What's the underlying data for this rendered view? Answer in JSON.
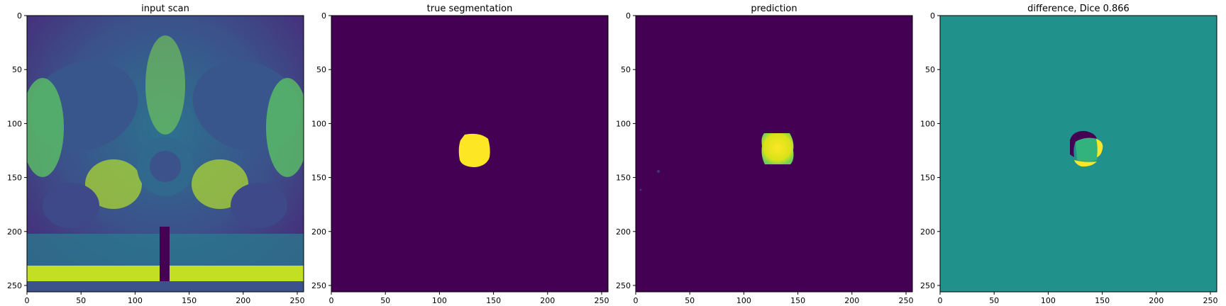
{
  "panels": [
    {
      "title": "input scan",
      "kind": "scan"
    },
    {
      "title": "true segmentation",
      "kind": "truth"
    },
    {
      "title": "prediction",
      "kind": "prediction"
    },
    {
      "title": "difference, Dice 0.866",
      "kind": "difference"
    }
  ],
  "axes": {
    "x_ticks": [
      "0",
      "50",
      "100",
      "150",
      "200",
      "250"
    ],
    "y_ticks": [
      "0",
      "50",
      "100",
      "150",
      "200",
      "250"
    ],
    "x_range": [
      0,
      256
    ],
    "y_range": [
      256,
      0
    ]
  },
  "colormap": "viridis",
  "colors": {
    "background_low": "#440154",
    "segmentation_high": "#fde725",
    "difference_neutral": "#21918c",
    "scan_dark": "#3b2a6e",
    "scan_bright": "#b5de2b"
  },
  "metric": {
    "name": "Dice",
    "value": 0.866
  }
}
